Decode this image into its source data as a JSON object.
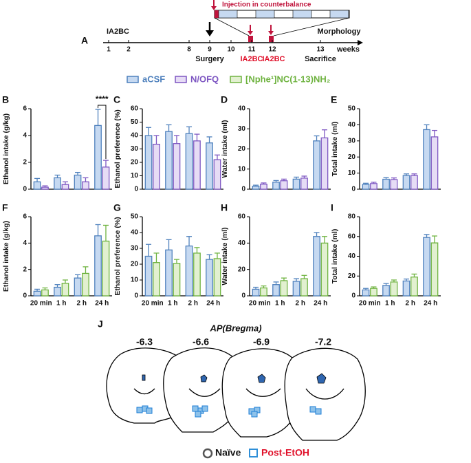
{
  "timeline": {
    "panel": "A",
    "ticks": [
      "1",
      "2",
      "8",
      "9",
      "10",
      "11",
      "12",
      "13"
    ],
    "unit": "weeks",
    "start_label": "IA2BC",
    "surgery": "Surgery",
    "morphology": "Morphology",
    "sacrifice": "Sacrifice",
    "injection_label": "Injection in counterbalance",
    "test_labels": [
      "IA2BC",
      "IA2BC"
    ]
  },
  "legend": [
    {
      "name": "aCSF",
      "color": "#4f81bd"
    },
    {
      "name": "N/OFQ",
      "color": "#7e57c2"
    },
    {
      "name": "[Nphe¹]NC(1-13)NH₂",
      "color": "#6fb340"
    }
  ],
  "chart_data": [
    {
      "type": "bar",
      "panel": "B",
      "ylabel": "Ethanol intake (g/kg)",
      "ylim": [
        0,
        6
      ],
      "yticks": [
        0,
        2,
        4,
        6
      ],
      "annotation": "****",
      "series": [
        {
          "name": "aCSF",
          "color": "#4f81bd",
          "fill": "#c6d9f1",
          "values": [
            0.55,
            0.85,
            1.05,
            4.75
          ],
          "errors": [
            0.25,
            0.2,
            0.2,
            1.2
          ]
        },
        {
          "name": "N/OFQ",
          "color": "#7e57c2",
          "fill": "#e6dcf5",
          "values": [
            0.15,
            0.35,
            0.55,
            1.65
          ],
          "errors": [
            0.1,
            0.2,
            0.3,
            0.5
          ]
        }
      ]
    },
    {
      "type": "bar",
      "panel": "C",
      "ylabel": "Ethanol preference (%)",
      "ylim": [
        0,
        60
      ],
      "yticks": [
        0,
        10,
        20,
        30,
        40,
        50,
        60
      ],
      "series": [
        {
          "name": "aCSF",
          "color": "#4f81bd",
          "fill": "#c6d9f1",
          "values": [
            40,
            43,
            41.5,
            34.5
          ],
          "errors": [
            6,
            5,
            5,
            4.5
          ]
        },
        {
          "name": "N/OFQ",
          "color": "#7e57c2",
          "fill": "#e6dcf5",
          "values": [
            33.5,
            34,
            36,
            22
          ],
          "errors": [
            6.5,
            6,
            5,
            3.5
          ]
        }
      ]
    },
    {
      "type": "bar",
      "panel": "D",
      "ylabel": "Water intake (ml)",
      "ylim": [
        0,
        40
      ],
      "yticks": [
        0,
        10,
        20,
        30,
        40
      ],
      "series": [
        {
          "name": "aCSF",
          "color": "#4f81bd",
          "fill": "#c6d9f1",
          "values": [
            1.5,
            3.5,
            5,
            24
          ],
          "errors": [
            0.5,
            0.8,
            1,
            2.5
          ]
        },
        {
          "name": "N/OFQ",
          "color": "#7e57c2",
          "fill": "#e6dcf5",
          "values": [
            2.5,
            4.2,
            5.5,
            25.5
          ],
          "errors": [
            0.6,
            0.8,
            1,
            4
          ]
        }
      ]
    },
    {
      "type": "bar",
      "panel": "E",
      "ylabel": "Total intake (ml)",
      "ylim": [
        0,
        50
      ],
      "yticks": [
        0,
        10,
        20,
        30,
        40,
        50
      ],
      "series": [
        {
          "name": "aCSF",
          "color": "#4f81bd",
          "fill": "#c6d9f1",
          "values": [
            3,
            6.2,
            8.5,
            37
          ],
          "errors": [
            0.7,
            1,
            1,
            3
          ]
        },
        {
          "name": "N/OFQ",
          "color": "#7e57c2",
          "fill": "#e6dcf5",
          "values": [
            3.5,
            6,
            8.5,
            32.5
          ],
          "errors": [
            0.8,
            1,
            1,
            4
          ]
        }
      ]
    },
    {
      "type": "bar",
      "panel": "F",
      "ylabel": "Ethanol intake (g/kg)",
      "ylim": [
        0,
        6
      ],
      "yticks": [
        0,
        2,
        4,
        6
      ],
      "categories": [
        "20 min",
        "1 h",
        "2 h",
        "24 h"
      ],
      "series": [
        {
          "name": "aCSF",
          "color": "#4f81bd",
          "fill": "#c6d9f1",
          "values": [
            0.35,
            0.65,
            1.35,
            4.55
          ],
          "errors": [
            0.15,
            0.2,
            0.25,
            0.85
          ]
        },
        {
          "name": "[Nphe¹]NC(1-13)NH₂",
          "color": "#6fb340",
          "fill": "#e2f0d0",
          "values": [
            0.45,
            0.95,
            1.7,
            4.15
          ],
          "errors": [
            0.15,
            0.25,
            0.5,
            1.2
          ]
        }
      ]
    },
    {
      "type": "bar",
      "panel": "G",
      "ylabel": "Ethanol preference (%)",
      "ylim": [
        0,
        50
      ],
      "yticks": [
        0,
        10,
        20,
        30,
        40,
        50
      ],
      "categories": [
        "20 min",
        "1 h",
        "2 h",
        "24 h"
      ],
      "series": [
        {
          "name": "aCSF",
          "color": "#4f81bd",
          "fill": "#c6d9f1",
          "values": [
            25,
            29,
            31.5,
            23
          ],
          "errors": [
            7.5,
            6.5,
            6,
            3
          ]
        },
        {
          "name": "[Nphe¹]NC(1-13)NH₂",
          "color": "#6fb340",
          "fill": "#e2f0d0",
          "values": [
            21,
            20.5,
            27,
            23.5
          ],
          "errors": [
            6,
            2.5,
            3.5,
            3.5
          ]
        }
      ]
    },
    {
      "type": "bar",
      "panel": "H",
      "ylabel": "Water intake (ml)",
      "ylim": [
        0,
        60
      ],
      "yticks": [
        0,
        20,
        40,
        60
      ],
      "categories": [
        "20 min",
        "1 h",
        "2 h",
        "24 h"
      ],
      "series": [
        {
          "name": "aCSF",
          "color": "#4f81bd",
          "fill": "#c6d9f1",
          "values": [
            5,
            8.5,
            11,
            45
          ],
          "errors": [
            1.5,
            2,
            2,
            3
          ]
        },
        {
          "name": "[Nphe¹]NC(1-13)NH₂",
          "color": "#6fb340",
          "fill": "#e2f0d0",
          "values": [
            6,
            11.5,
            13,
            40
          ],
          "errors": [
            1.5,
            2,
            2.5,
            5
          ]
        }
      ]
    },
    {
      "type": "bar",
      "panel": "I",
      "ylabel": "Total intake (ml)",
      "ylim": [
        0,
        80
      ],
      "yticks": [
        0,
        20,
        40,
        60,
        80
      ],
      "categories": [
        "20 min",
        "1 h",
        "2 h",
        "24 h"
      ],
      "series": [
        {
          "name": "aCSF",
          "color": "#4f81bd",
          "fill": "#c6d9f1",
          "values": [
            6,
            10.5,
            15,
            59
          ],
          "errors": [
            1.5,
            2,
            2,
            3
          ]
        },
        {
          "name": "[Nphe¹]NC(1-13)NH₂",
          "color": "#6fb340",
          "fill": "#e2f0d0",
          "values": [
            7.5,
            14,
            19,
            53.5
          ],
          "errors": [
            1.5,
            2,
            3,
            7
          ]
        }
      ]
    }
  ],
  "sections": {
    "panel": "J",
    "title": "AP(Bregma)",
    "levels": [
      "-6.3",
      "-6.6",
      "-6.9",
      "-7.2"
    ],
    "legend": [
      "Naïve",
      "Post-EtOH"
    ]
  }
}
